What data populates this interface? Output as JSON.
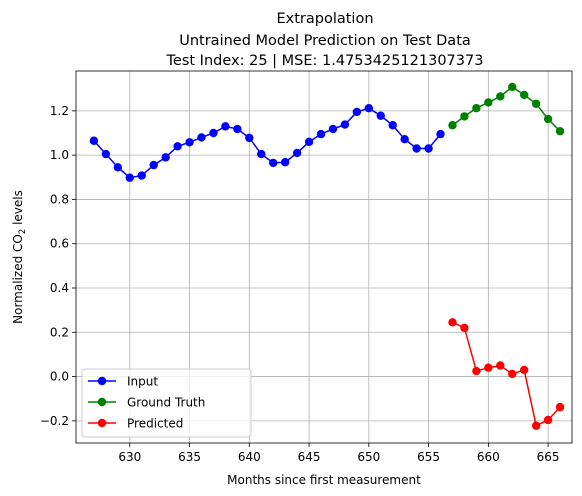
{
  "chart_data": {
    "type": "line",
    "title_lines": [
      "Extrapolation",
      "Untrained Model Prediction on Test Data",
      "Test Index: 25 | MSE: 1.4753425121307373"
    ],
    "xlabel": "Months since first measurement",
    "ylabel_main": "Normalized CO",
    "ylabel_sub": "2",
    "ylabel_tail": " levels",
    "xlim": [
      625.5,
      667.0
    ],
    "ylim": [
      -0.3,
      1.38
    ],
    "x_ticks": [
      630,
      635,
      640,
      645,
      650,
      655,
      660,
      665
    ],
    "x_tick_labels": [
      "630",
      "635",
      "640",
      "645",
      "650",
      "655",
      "660",
      "665"
    ],
    "y_ticks": [
      -0.2,
      0.0,
      0.2,
      0.4,
      0.6,
      0.8,
      1.0,
      1.2
    ],
    "y_tick_labels": [
      "−0.2",
      "0.0",
      "0.2",
      "0.4",
      "0.6",
      "0.8",
      "1.0",
      "1.2"
    ],
    "grid": true,
    "legend_position": "lower-left",
    "series": [
      {
        "name": "Input",
        "color": "#0000ff",
        "x": [
          627,
          628,
          629,
          630,
          631,
          632,
          633,
          634,
          635,
          636,
          637,
          638,
          639,
          640,
          641,
          642,
          643,
          644,
          645,
          646,
          647,
          648,
          649,
          650,
          651,
          652,
          653,
          654,
          655,
          656
        ],
        "y": [
          1.065,
          1.005,
          0.945,
          0.898,
          0.908,
          0.955,
          0.99,
          1.04,
          1.058,
          1.08,
          1.1,
          1.13,
          1.118,
          1.078,
          1.005,
          0.965,
          0.968,
          1.01,
          1.06,
          1.095,
          1.118,
          1.138,
          1.195,
          1.212,
          1.178,
          1.135,
          1.072,
          1.03,
          1.03,
          1.095
        ]
      },
      {
        "name": "Ground Truth",
        "color": "#008000",
        "x": [
          657,
          658,
          659,
          660,
          661,
          662,
          663,
          664,
          665,
          666
        ],
        "y": [
          1.135,
          1.175,
          1.212,
          1.238,
          1.265,
          1.308,
          1.272,
          1.232,
          1.163,
          1.108
        ]
      },
      {
        "name": "Predicted",
        "color": "#ff0000",
        "x": [
          657,
          658,
          659,
          660,
          661,
          662,
          663,
          664,
          665,
          666
        ],
        "y": [
          0.245,
          0.22,
          0.025,
          0.04,
          0.05,
          0.012,
          0.03,
          -0.222,
          -0.196,
          -0.138
        ]
      }
    ]
  }
}
